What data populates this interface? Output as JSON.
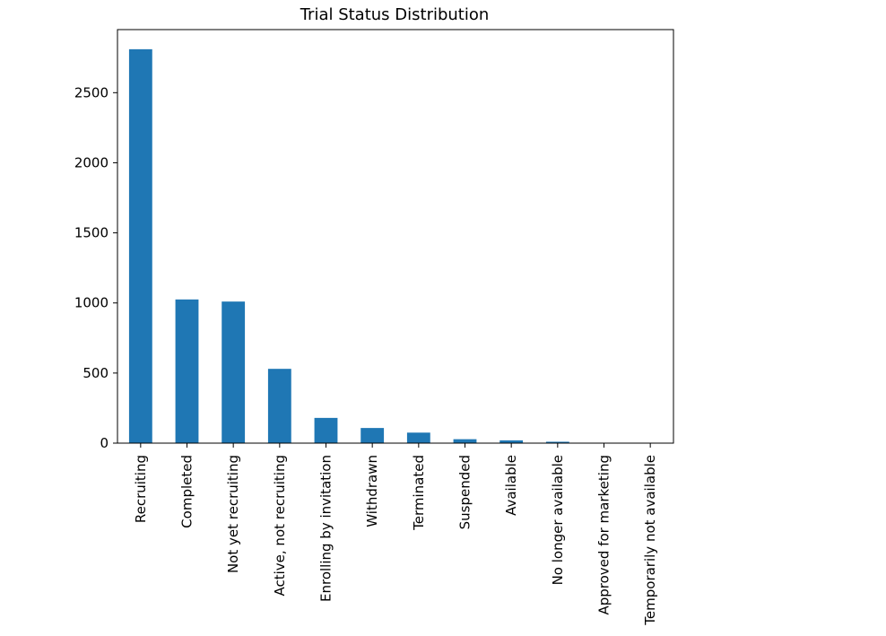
{
  "chart_data": {
    "type": "bar",
    "title": "Trial Status Distribution",
    "xlabel": "",
    "ylabel": "",
    "ylim": [
      0,
      2950
    ],
    "yticks": [
      0,
      500,
      1000,
      1500,
      2000,
      2500
    ],
    "categories": [
      "Recruiting",
      "Completed",
      "Not yet recruiting",
      "Active, not recruiting",
      "Enrolling by invitation",
      "Withdrawn",
      "Terminated",
      "Suspended",
      "Available",
      "No longer available",
      "Approved for marketing",
      "Temporarily not available"
    ],
    "values": [
      2810,
      1025,
      1010,
      530,
      180,
      108,
      75,
      28,
      20,
      10,
      3,
      2
    ],
    "bar_color": "#1f77b4",
    "grid": false,
    "legend": "none"
  }
}
